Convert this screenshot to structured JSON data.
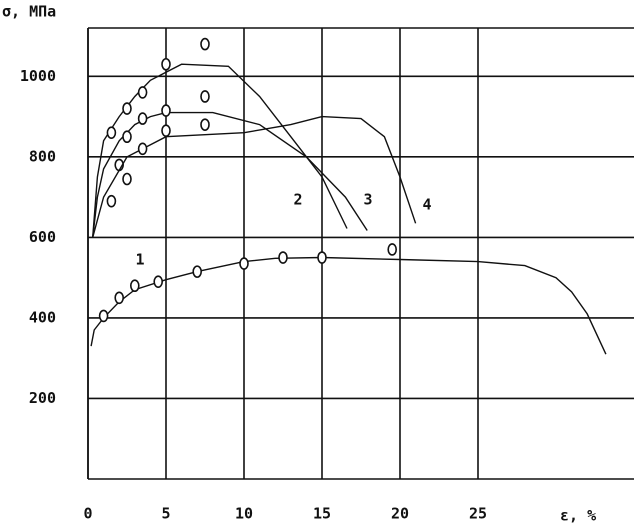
{
  "chart_data": {
    "type": "line",
    "y_label": "σ, МПа",
    "x_label": "ε, %",
    "xlim": [
      0,
      35
    ],
    "xticks": [
      0,
      5,
      10,
      15,
      20,
      25
    ],
    "ylim": [
      0,
      1120
    ],
    "yticks": [
      200,
      400,
      600,
      800,
      1000
    ],
    "grid": true,
    "color": "#111111",
    "series": [
      {
        "name": "1",
        "x": [
          0.2,
          0.4,
          1,
          2,
          3,
          5,
          7,
          10,
          12,
          15,
          20,
          25,
          28,
          30,
          31,
          32,
          33.2
        ],
        "values": [
          330,
          370,
          400,
          440,
          470,
          495,
          515,
          540,
          548,
          550,
          545,
          540,
          530,
          500,
          465,
          410,
          310
        ],
        "points_x": [
          1,
          2,
          3,
          4.5,
          7,
          10,
          12.5,
          15,
          19.5
        ],
        "points_values": [
          405,
          450,
          480,
          490,
          515,
          535,
          550,
          550,
          570
        ]
      },
      {
        "name": "2",
        "x": [
          0.3,
          0.6,
          1,
          2,
          3,
          4,
          5,
          6,
          9,
          11,
          13,
          15,
          16.6
        ],
        "values": [
          600,
          750,
          840,
          900,
          950,
          990,
          1010,
          1030,
          1025,
          950,
          850,
          750,
          622
        ],
        "points_x": [
          1.5,
          2.5,
          3.5,
          5,
          7.5
        ],
        "points_values": [
          860,
          920,
          960,
          1030,
          1080
        ]
      },
      {
        "name": "3",
        "x": [
          0.3,
          0.6,
          1,
          2,
          3,
          4,
          5,
          8,
          11,
          14,
          16.5,
          17.9
        ],
        "values": [
          600,
          700,
          770,
          840,
          880,
          900,
          910,
          910,
          880,
          800,
          700,
          617
        ],
        "points_x": [
          2,
          2.5,
          3.5,
          5,
          7.5
        ],
        "points_values": [
          780,
          850,
          895,
          915,
          950
        ]
      },
      {
        "name": "4",
        "x": [
          0.3,
          1,
          2.5,
          5,
          10,
          13,
          15,
          17.5,
          19,
          20,
          21
        ],
        "values": [
          600,
          700,
          800,
          850,
          860,
          880,
          900,
          895,
          850,
          750,
          635
        ],
        "points_x": [
          1.5,
          2.5,
          3.5,
          5,
          7.5
        ],
        "points_values": [
          690,
          745,
          820,
          865,
          880
        ]
      }
    ]
  }
}
